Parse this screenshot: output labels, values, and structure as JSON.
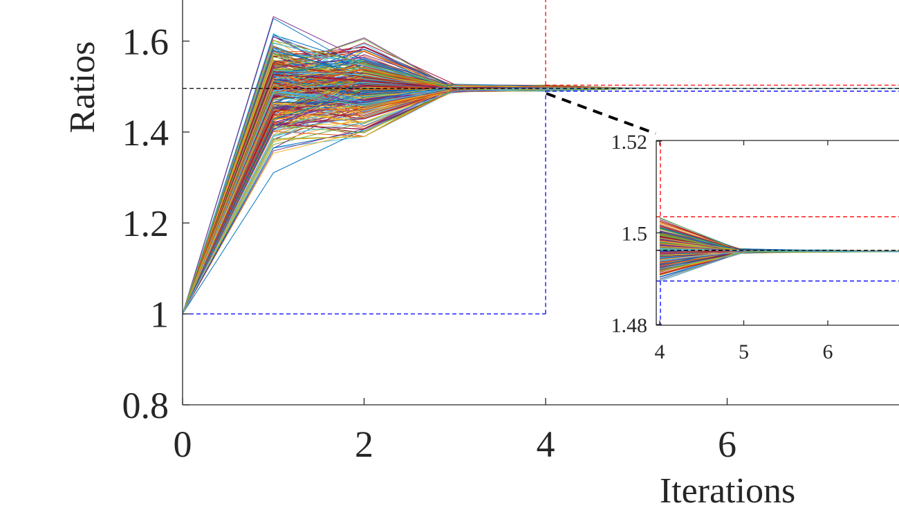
{
  "chart_data": [
    {
      "type": "line",
      "xlabel": "Iterations",
      "ylabel": "Ratios",
      "xlim": [
        0,
        8
      ],
      "ylim": [
        0.8,
        1.7
      ],
      "x_ticks": [
        0,
        2,
        4,
        6
      ],
      "y_ticks": [
        0.8,
        1,
        1.2,
        1.4,
        1.6
      ],
      "x_tick_labels": [
        "0",
        "2",
        "4",
        "6"
      ],
      "y_tick_labels": [
        "0.8",
        "1",
        "1.2",
        "1.4",
        "1.6"
      ],
      "grid": false,
      "legend": "none",
      "x": [
        0,
        1,
        2,
        3,
        4,
        5,
        6,
        7,
        8
      ],
      "series_count": 300,
      "series_description_values": {
        "start_value": 1.0,
        "spread_at_iteration_1": [
          1.28,
          1.66
        ],
        "spread_at_iteration_2": [
          1.39,
          1.61
        ],
        "spread_at_iteration_3": [
          1.485,
          1.505
        ],
        "converged_value": 1.496
      },
      "reference_lines": [
        {
          "style": "dashed",
          "color": "#000000",
          "y": 1.496
        },
        {
          "style": "dashed",
          "color": "#ff0000",
          "y": 1.503,
          "x_from": 4
        },
        {
          "style": "dashed",
          "color": "#0000ff",
          "y": 1.49,
          "x_from": 4
        },
        {
          "style": "dashed",
          "color": "#ff0000",
          "x": 4,
          "y_from": 1.503
        },
        {
          "style": "dashed",
          "color": "#0000ff",
          "x": 4,
          "y_range": [
            1.0,
            1.49
          ]
        },
        {
          "style": "dashed",
          "color": "#0000ff",
          "y": 1.0,
          "x_range": [
            0,
            4
          ]
        }
      ]
    },
    {
      "type": "line",
      "role": "inset-zoom",
      "xlim": [
        4,
        7
      ],
      "ylim": [
        1.48,
        1.52
      ],
      "x_ticks": [
        4,
        5,
        6
      ],
      "y_ticks": [
        1.48,
        1.5,
        1.52
      ],
      "x_tick_labels": [
        "4",
        "5",
        "6"
      ],
      "y_tick_labels": [
        "1.48",
        "1.5",
        "1.52"
      ],
      "grid": false,
      "legend": "none",
      "reference_lines": [
        {
          "style": "dashed",
          "color": "#000000",
          "y": 1.4962
        },
        {
          "style": "dashed",
          "color": "#ff0000",
          "y": 1.5035
        },
        {
          "style": "dashed",
          "color": "#0000ff",
          "y": 1.4895
        }
      ],
      "series_description_values": {
        "spread_at_iteration_4": [
          1.4895,
          1.5035
        ],
        "converged_value": 1.4962
      }
    }
  ],
  "colors": {
    "axis": "#262626",
    "palette": [
      "#0072BD",
      "#D95319",
      "#EDB120",
      "#7E2F8E",
      "#77AC30",
      "#4DBEEE",
      "#A2142F"
    ]
  }
}
